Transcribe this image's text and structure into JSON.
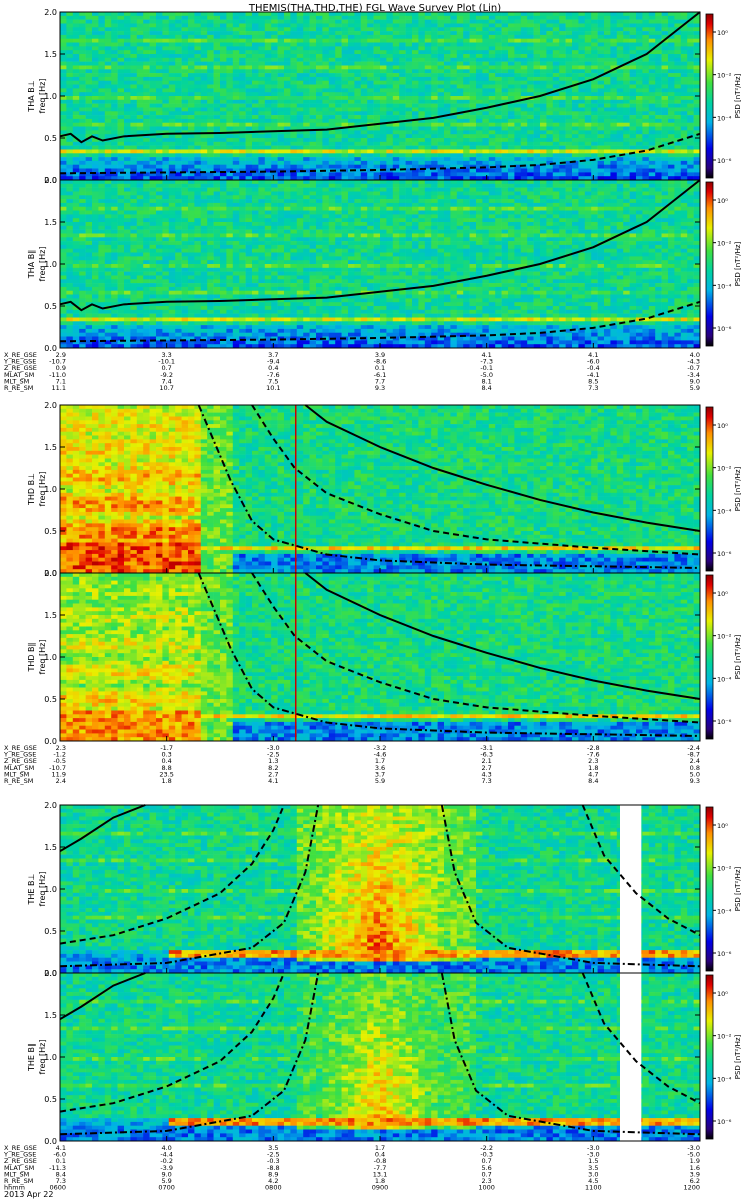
{
  "title": "THEMIS(THA,THD,THE) FGL Wave Survey Plot (Lin)",
  "date_label": "2013 Apr 22",
  "colors": {
    "background": "#ffffff",
    "text": "#000000",
    "cutoff_line": "#000000",
    "marker_line": "#cc0000"
  },
  "chart_data": {
    "type": "heatmap",
    "x": {
      "range": [
        600,
        1200
      ]
    },
    "y": {
      "range": [
        0,
        2.0
      ],
      "ticks": [
        "0.0",
        "0.5",
        "1.0",
        "1.5",
        "2.0"
      ]
    },
    "colorbar": {
      "label": "PSD [nT²/Hz]",
      "ticks": [
        "10⁰",
        "10⁻²",
        "10⁻⁴",
        "10⁻⁶"
      ]
    },
    "panel_labels": [
      "THA B⊥",
      "THA B∥",
      "THD B⊥",
      "THD B∥",
      "THE B⊥",
      "THE B∥"
    ],
    "ylabel": "freq [Hz]",
    "groups": [
      {
        "probe": "THA",
        "ephemeris": [
          {
            "label": "X_RE_GSE",
            "values": [
              "2.9",
              "3.3",
              "3.7",
              "3.9",
              "4.1",
              "4.1",
              "4.0"
            ]
          },
          {
            "label": "Y_RE_GSE",
            "values": [
              "-10.7",
              "-10.1",
              "-9.4",
              "-8.6",
              "-7.3",
              "-6.0",
              "-4.3"
            ]
          },
          {
            "label": "Z_RE_GSE",
            "values": [
              "0.9",
              "0.7",
              "0.4",
              "0.1",
              "-0.1",
              "-0.4",
              "-0.7"
            ]
          },
          {
            "label": "MLAT_SM",
            "values": [
              "-11.0",
              "-9.2",
              "-7.6",
              "-6.1",
              "-5.0",
              "-4.1",
              "-3.4"
            ]
          },
          {
            "label": "MLT_SM",
            "values": [
              "7.1",
              "7.4",
              "7.5",
              "7.7",
              "8.1",
              "8.5",
              "9.0"
            ]
          },
          {
            "label": "R_RE_SM",
            "values": [
              "11.1",
              "10.7",
              "10.1",
              "9.3",
              "8.4",
              "7.3",
              "5.9"
            ]
          }
        ],
        "cutoffs": {
          "solid": [
            [
              600,
              0.52
            ],
            [
              610,
              0.55
            ],
            [
              620,
              0.45
            ],
            [
              630,
              0.52
            ],
            [
              640,
              0.47
            ],
            [
              660,
              0.52
            ],
            [
              700,
              0.55
            ],
            [
              750,
              0.56
            ],
            [
              800,
              0.58
            ],
            [
              850,
              0.6
            ],
            [
              900,
              0.67
            ],
            [
              950,
              0.74
            ],
            [
              1000,
              0.86
            ],
            [
              1050,
              1.0
            ],
            [
              1100,
              1.2
            ],
            [
              1150,
              1.5
            ],
            [
              1190,
              1.9
            ],
            [
              1200,
              2.0
            ]
          ],
          "dashed": [
            [
              600,
              0.08
            ],
            [
              700,
              0.09
            ],
            [
              800,
              0.1
            ],
            [
              900,
              0.12
            ],
            [
              1000,
              0.15
            ],
            [
              1050,
              0.18
            ],
            [
              1100,
              0.24
            ],
            [
              1150,
              0.35
            ],
            [
              1200,
              0.55
            ]
          ]
        },
        "red_line_x": null,
        "gaps": []
      },
      {
        "probe": "THD",
        "ephemeris": [
          {
            "label": "X_RE_GSE",
            "values": [
              "2.3",
              "-1.7",
              "-3.0",
              "-3.2",
              "-3.1",
              "-2.8",
              "-2.4"
            ]
          },
          {
            "label": "Y_RE_GSE",
            "values": [
              "-1.2",
              "0.3",
              "-2.5",
              "-4.6",
              "-6.3",
              "-7.6",
              "-8.7"
            ]
          },
          {
            "label": "Z_RE_GSE",
            "values": [
              "-0.5",
              "0.4",
              "1.3",
              "1.7",
              "2.1",
              "2.3",
              "2.4"
            ]
          },
          {
            "label": "MLAT_SM",
            "values": [
              "-10.7",
              "8.8",
              "8.2",
              "3.6",
              "2.7",
              "1.8",
              "0.8"
            ]
          },
          {
            "label": "MLT_SM",
            "values": [
              "11.9",
              "23.5",
              "2.7",
              "3.7",
              "4.3",
              "4.7",
              "5.0"
            ]
          },
          {
            "label": "R_RE_SM",
            "values": [
              "2.4",
              "1.8",
              "4.1",
              "5.9",
              "7.3",
              "8.4",
              "9.3"
            ]
          }
        ],
        "cutoffs": {
          "solid": [
            [
              830,
              2.05
            ],
            [
              850,
              1.8
            ],
            [
              900,
              1.5
            ],
            [
              950,
              1.25
            ],
            [
              1000,
              1.05
            ],
            [
              1050,
              0.87
            ],
            [
              1100,
              0.72
            ],
            [
              1150,
              0.6
            ],
            [
              1200,
              0.5
            ]
          ],
          "dashed": [
            [
              780,
              2.05
            ],
            [
              800,
              1.6
            ],
            [
              820,
              1.25
            ],
            [
              850,
              0.95
            ],
            [
              900,
              0.7
            ],
            [
              950,
              0.5
            ],
            [
              1000,
              0.4
            ],
            [
              1100,
              0.3
            ],
            [
              1200,
              0.22
            ]
          ],
          "dashdot": [
            [
              730,
              2.05
            ],
            [
              740,
              1.7
            ],
            [
              760,
              1.1
            ],
            [
              780,
              0.62
            ],
            [
              800,
              0.4
            ],
            [
              850,
              0.22
            ],
            [
              900,
              0.15
            ],
            [
              1000,
              0.1
            ],
            [
              1100,
              0.08
            ],
            [
              1200,
              0.06
            ]
          ]
        },
        "red_line_x": 821,
        "gaps": []
      },
      {
        "probe": "THE",
        "ephemeris": [
          {
            "label": "X_RE_GSE",
            "values": [
              "4.1",
              "4.0",
              "3.5",
              "1.7",
              "-2.2",
              "-3.0",
              "-3.0"
            ]
          },
          {
            "label": "Y_RE_GSE",
            "values": [
              "-6.0",
              "-4.4",
              "-2.5",
              "0.4",
              "-0.3",
              "-3.0",
              "-5.0"
            ]
          },
          {
            "label": "Z_RE_GSE",
            "values": [
              "0.1",
              "-0.2",
              "-0.3",
              "-0.8",
              "0.7",
              "1.5",
              "1.9"
            ]
          },
          {
            "label": "MLAT_SM",
            "values": [
              "-11.3",
              "-3.9",
              "-8.8",
              "-7.7",
              "5.6",
              "3.5",
              "1.6"
            ]
          },
          {
            "label": "MLT_SM",
            "values": [
              "8.4",
              "9.0",
              "8.9",
              "13.1",
              "0.7",
              "3.0",
              "3.9"
            ]
          },
          {
            "label": "R_RE_SM",
            "values": [
              "7.3",
              "5.9",
              "4.2",
              "1.8",
              "2.3",
              "4.5",
              "6.2"
            ]
          }
        ],
        "cutoffs": {
          "solid": [
            [
              600,
              1.45
            ],
            [
              620,
              1.6
            ],
            [
              650,
              1.85
            ],
            [
              680,
              2.05
            ]
          ],
          "dashed": [
            [
              600,
              0.35
            ],
            [
              650,
              0.45
            ],
            [
              700,
              0.65
            ],
            [
              750,
              0.95
            ],
            [
              780,
              1.3
            ],
            [
              800,
              1.7
            ],
            [
              810,
              2.05
            ]
          ],
          "dashdot": [
            [
              600,
              0.08
            ],
            [
              700,
              0.12
            ],
            [
              780,
              0.3
            ],
            [
              810,
              0.6
            ],
            [
              830,
              1.2
            ],
            [
              842,
              2.05
            ]
          ],
          "dashdot2": [
            [
              958,
              2.05
            ],
            [
              970,
              1.2
            ],
            [
              990,
              0.6
            ],
            [
              1020,
              0.3
            ],
            [
              1100,
              0.12
            ],
            [
              1200,
              0.08
            ]
          ],
          "dashed2": [
            [
              1090,
              2.05
            ],
            [
              1110,
              1.4
            ],
            [
              1140,
              0.95
            ],
            [
              1170,
              0.65
            ],
            [
              1200,
              0.45
            ]
          ]
        },
        "red_line_x": null,
        "gaps": [
          [
            1125,
            1145
          ]
        ]
      }
    ],
    "time_axis": {
      "label": "hhmm",
      "ticks": [
        "0600",
        "0700",
        "0800",
        "0900",
        "1000",
        "1100",
        "1200"
      ],
      "values": [
        600,
        700,
        800,
        900,
        1000,
        1100,
        1200
      ]
    }
  }
}
